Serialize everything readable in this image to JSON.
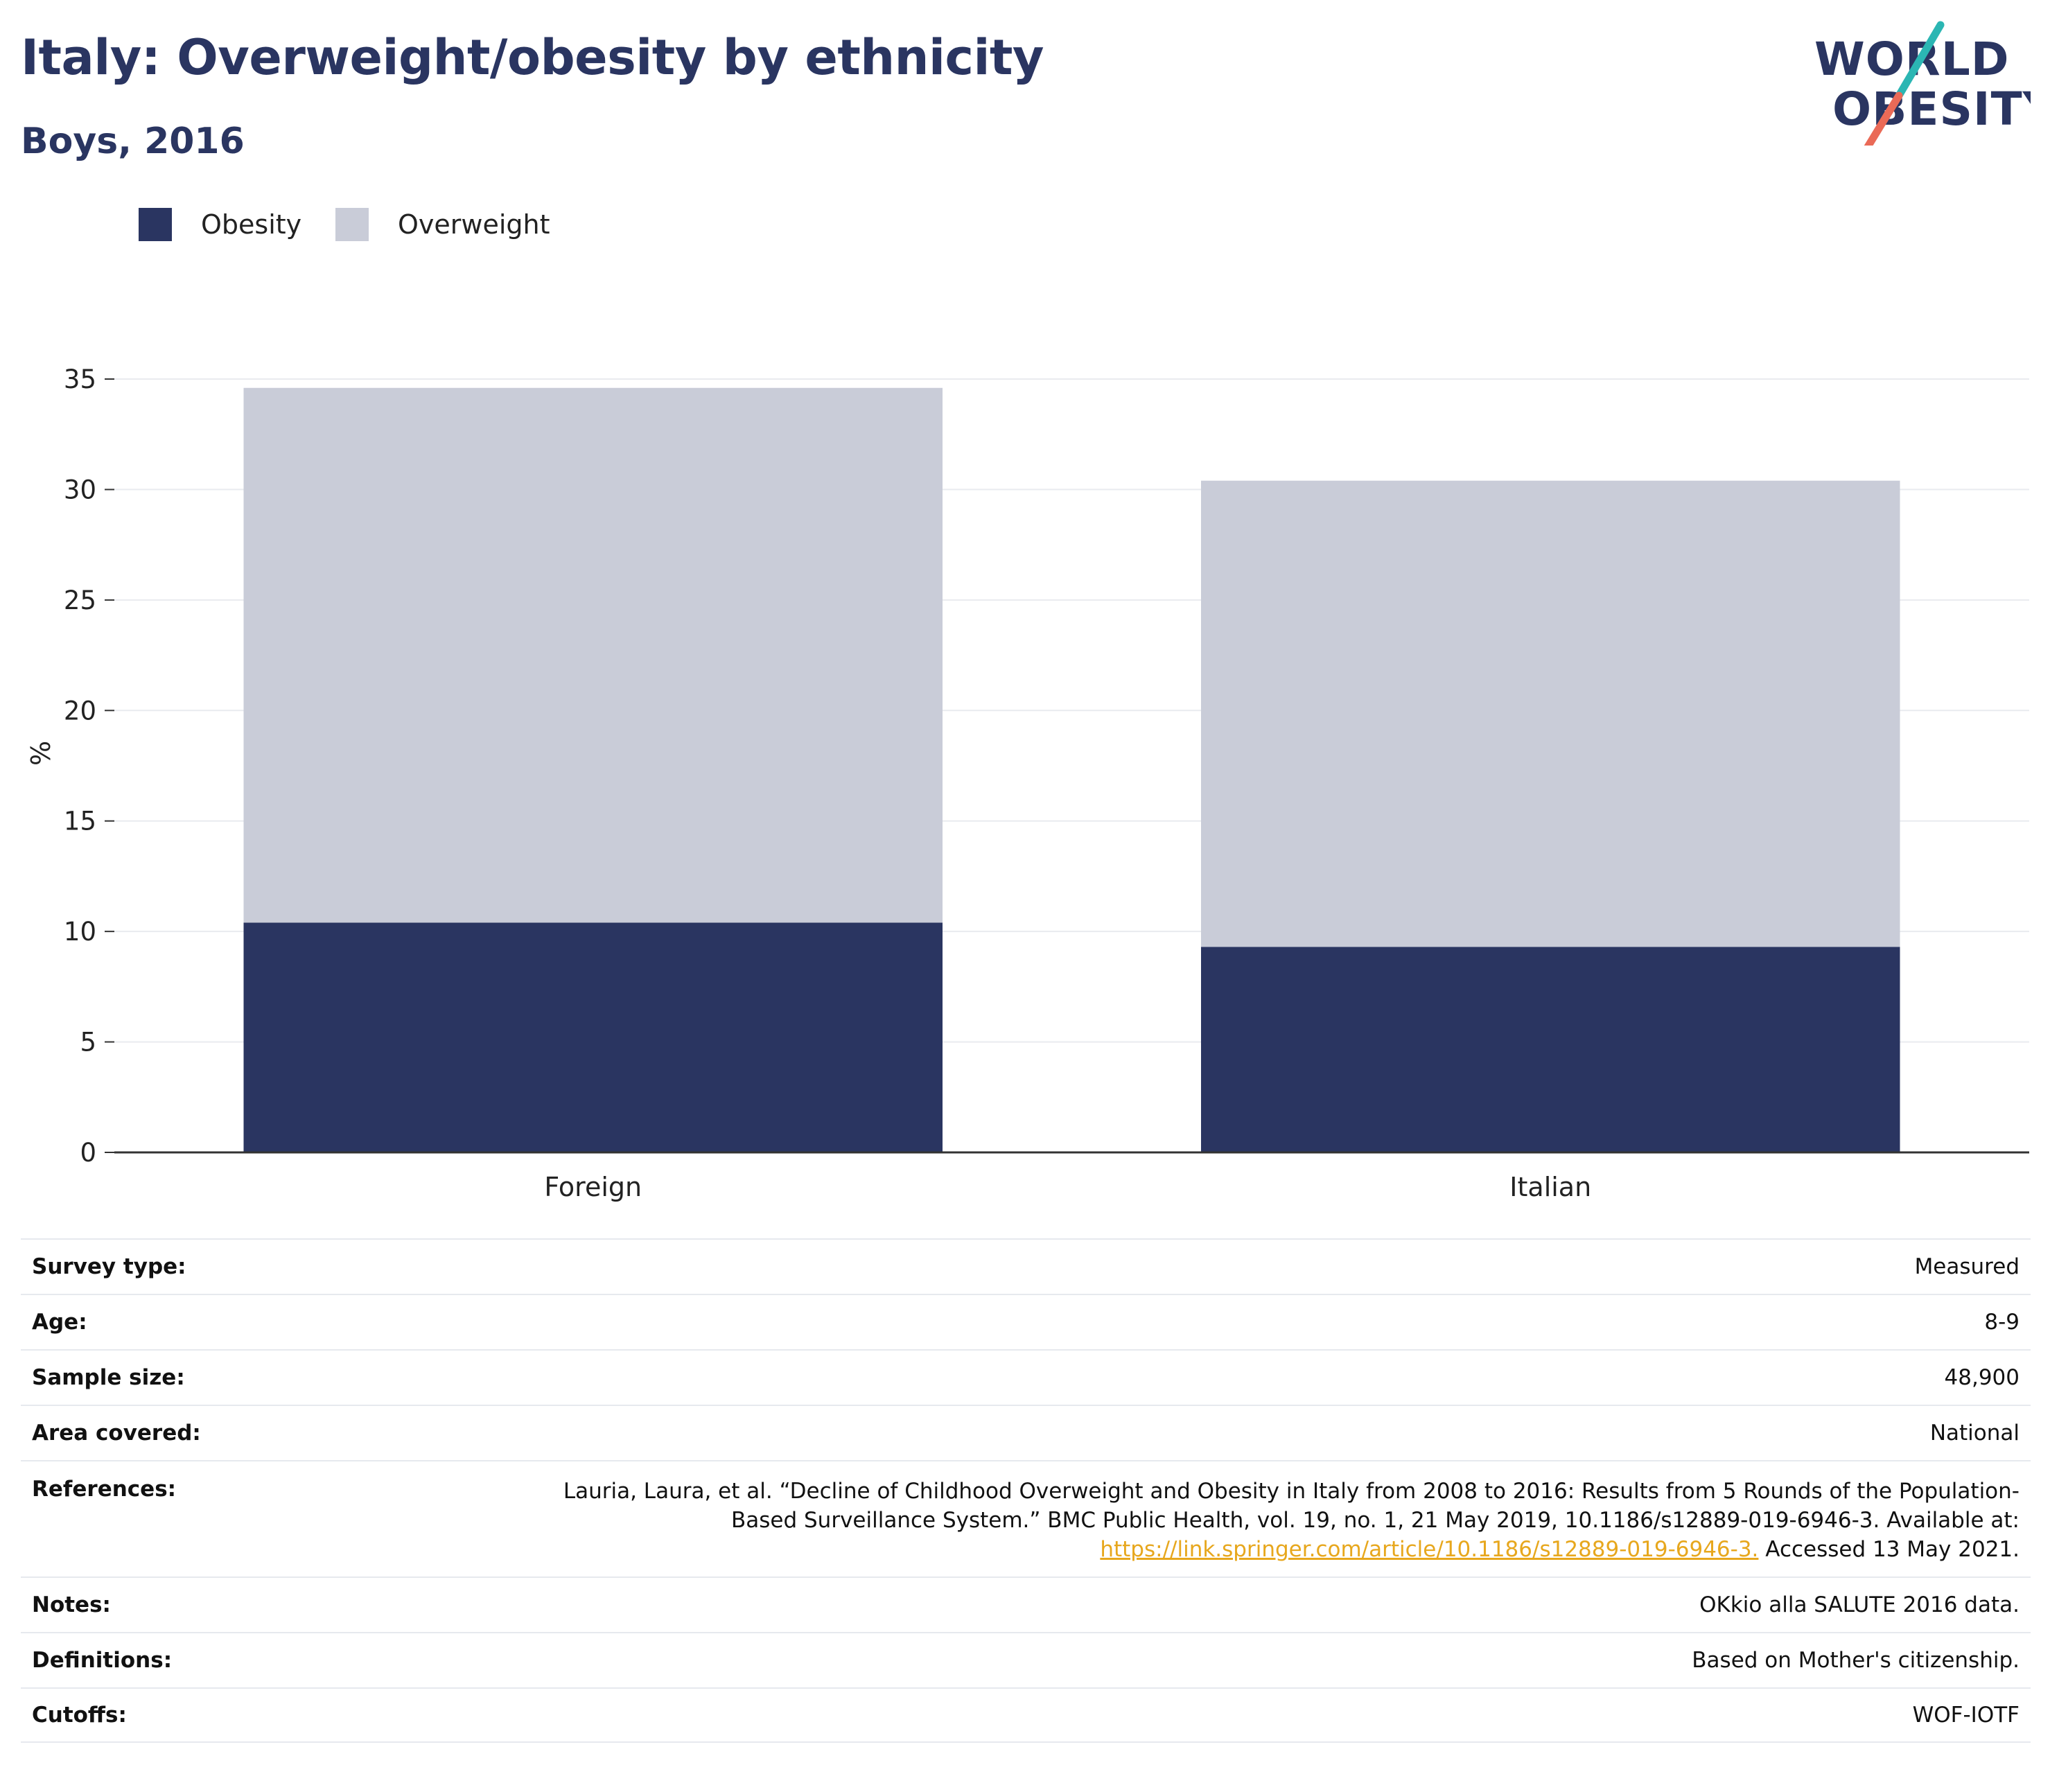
{
  "title": "Italy: Overweight/obesity by ethnicity",
  "subtitle": "Boys, 2016",
  "logo": {
    "line1": "WORLD",
    "line2": "OBESITY"
  },
  "colors": {
    "obesity": "#2a3561",
    "overweight": "#c9ccd8",
    "brand_teal": "#2bb6b3",
    "brand_coral": "#ea6a57",
    "link": "#e7a71d"
  },
  "chart_data": {
    "type": "bar",
    "stacked": true,
    "categories": [
      "Foreign",
      "Italian"
    ],
    "series": [
      {
        "name": "Obesity",
        "values": [
          10.4,
          9.3
        ]
      },
      {
        "name": "Overweight",
        "values": [
          24.2,
          21.1
        ]
      }
    ],
    "ylabel": "%",
    "xlabel": "",
    "ylim": [
      0,
      35
    ],
    "yticks": [
      0,
      5,
      10,
      15,
      20,
      25,
      30,
      35
    ],
    "grid": true,
    "legend_position": "top-left"
  },
  "info": {
    "survey_type": {
      "label": "Survey type:",
      "value": "Measured"
    },
    "age": {
      "label": "Age:",
      "value": "8-9"
    },
    "sample_size": {
      "label": "Sample size:",
      "value": "48,900"
    },
    "area_covered": {
      "label": "Area covered:",
      "value": "National"
    },
    "references": {
      "label": "References:",
      "text_line1": "Lauria, Laura, et al. “Decline of Childhood Overweight and Obesity in Italy from 2008 to 2016: Results from 5 Rounds of the Population-",
      "text_line2": "Based Surveillance System.” BMC Public Health, vol. 19, no. 1, 21 May 2019, 10.1186/s12889-019-6946-3. Available at:",
      "link": "https://link.springer.com/article/10.1186/s12889-019-6946-3.",
      "accessed": " Accessed 13 May 2021."
    },
    "notes": {
      "label": "Notes:",
      "value": "OKkio alla SALUTE 2016 data."
    },
    "definitions": {
      "label": "Definitions:",
      "value": "Based on Mother's citizenship."
    },
    "cutoffs": {
      "label": "Cutoffs:",
      "value": "WOF-IOTF"
    }
  }
}
